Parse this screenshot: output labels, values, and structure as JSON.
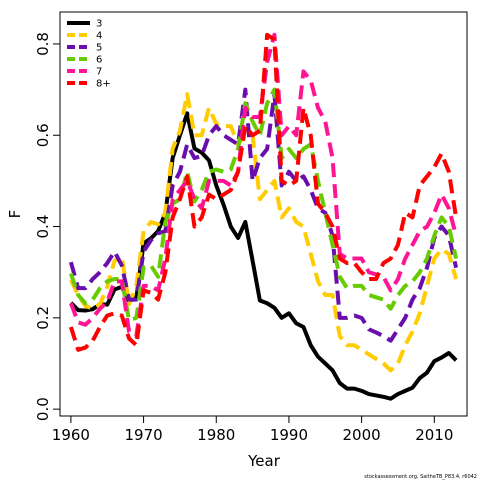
{
  "chart_data": {
    "type": "line",
    "title": "",
    "xlabel": "Year",
    "ylabel": "F",
    "xlim": [
      1958.5,
      2014.5
    ],
    "ylim": [
      -0.015,
      0.87
    ],
    "xticks": [
      1960,
      1970,
      1980,
      1990,
      2000,
      2010
    ],
    "xtick_labels": [
      "1960",
      "1970",
      "1980",
      "1990",
      "2000",
      "2010"
    ],
    "yticks": [
      0.0,
      0.2,
      0.4,
      0.6,
      0.8
    ],
    "ytick_labels": [
      "0.0",
      "0.2",
      "0.4",
      "0.6",
      "0.8"
    ],
    "grid": false,
    "legend_position": "top-left",
    "caption": "stockassessment.org, SaitheTB_P83.4, r6042",
    "x": [
      1960,
      1961,
      1962,
      1963,
      1964,
      1965,
      1966,
      1967,
      1968,
      1969,
      1970,
      1971,
      1972,
      1973,
      1974,
      1975,
      1976,
      1977,
      1978,
      1979,
      1980,
      1981,
      1982,
      1983,
      1984,
      1985,
      1986,
      1987,
      1988,
      1989,
      1990,
      1991,
      1992,
      1993,
      1994,
      1995,
      1996,
      1997,
      1998,
      1999,
      2000,
      2001,
      2002,
      2003,
      2004,
      2005,
      2006,
      2007,
      2008,
      2009,
      2010,
      2011,
      2012,
      2013
    ],
    "series": [
      {
        "name": "3",
        "color": "#000000",
        "dash": "solid",
        "values": [
          0.233,
          0.217,
          0.216,
          0.219,
          0.23,
          0.229,
          0.262,
          0.268,
          0.237,
          0.243,
          0.363,
          0.374,
          0.39,
          0.43,
          0.55,
          0.6,
          0.648,
          0.571,
          0.562,
          0.545,
          0.49,
          0.448,
          0.4,
          0.375,
          0.41,
          0.325,
          0.238,
          0.232,
          0.222,
          0.2,
          0.21,
          0.188,
          0.18,
          0.14,
          0.115,
          0.1,
          0.085,
          0.057,
          0.045,
          0.045,
          0.04,
          0.033,
          0.03,
          0.027,
          0.023,
          0.033,
          0.04,
          0.047,
          0.068,
          0.08,
          0.105,
          0.113,
          0.123,
          0.107
        ]
      },
      {
        "name": "4",
        "color": "#ffcc00",
        "dash": "dashed",
        "values": [
          0.283,
          0.25,
          0.226,
          0.22,
          0.23,
          0.268,
          0.325,
          0.335,
          0.23,
          0.27,
          0.39,
          0.41,
          0.405,
          0.43,
          0.57,
          0.61,
          0.69,
          0.6,
          0.6,
          0.66,
          0.625,
          0.62,
          0.62,
          0.58,
          0.6,
          0.6,
          0.46,
          0.48,
          0.5,
          0.42,
          0.44,
          0.41,
          0.4,
          0.34,
          0.28,
          0.25,
          0.25,
          0.16,
          0.14,
          0.14,
          0.13,
          0.12,
          0.11,
          0.1,
          0.085,
          0.1,
          0.14,
          0.17,
          0.21,
          0.27,
          0.33,
          0.35,
          0.34,
          0.285
        ]
      },
      {
        "name": "5",
        "color": "#6a0dad",
        "dash": "dashed",
        "values": [
          0.322,
          0.265,
          0.265,
          0.285,
          0.3,
          0.32,
          0.345,
          0.315,
          0.24,
          0.24,
          0.345,
          0.37,
          0.385,
          0.39,
          0.49,
          0.52,
          0.58,
          0.55,
          0.555,
          0.6,
          0.62,
          0.6,
          0.59,
          0.58,
          0.7,
          0.5,
          0.55,
          0.57,
          0.69,
          0.49,
          0.52,
          0.5,
          0.51,
          0.48,
          0.44,
          0.43,
          0.38,
          0.2,
          0.2,
          0.205,
          0.2,
          0.175,
          0.168,
          0.16,
          0.15,
          0.175,
          0.2,
          0.24,
          0.265,
          0.31,
          0.375,
          0.4,
          0.38,
          0.31
        ]
      },
      {
        "name": "6",
        "color": "#66cc00",
        "dash": "dashed",
        "values": [
          0.297,
          0.25,
          0.232,
          0.24,
          0.265,
          0.28,
          0.285,
          0.285,
          0.195,
          0.2,
          0.31,
          0.315,
          0.29,
          0.41,
          0.45,
          0.46,
          0.52,
          0.455,
          0.48,
          0.52,
          0.525,
          0.52,
          0.525,
          0.57,
          0.67,
          0.63,
          0.6,
          0.67,
          0.7,
          0.55,
          0.57,
          0.55,
          0.57,
          0.58,
          0.5,
          0.43,
          0.36,
          0.29,
          0.265,
          0.27,
          0.27,
          0.25,
          0.245,
          0.24,
          0.22,
          0.25,
          0.27,
          0.28,
          0.3,
          0.33,
          0.38,
          0.42,
          0.4,
          0.33
        ]
      },
      {
        "name": "7",
        "color": "#ff1493",
        "dash": "dashed",
        "values": [
          0.232,
          0.19,
          0.185,
          0.2,
          0.22,
          0.235,
          0.28,
          0.28,
          0.17,
          0.16,
          0.27,
          0.27,
          0.26,
          0.33,
          0.46,
          0.48,
          0.5,
          0.46,
          0.44,
          0.5,
          0.5,
          0.5,
          0.49,
          0.52,
          0.66,
          0.64,
          0.64,
          0.76,
          0.82,
          0.6,
          0.62,
          0.6,
          0.74,
          0.72,
          0.66,
          0.63,
          0.55,
          0.34,
          0.33,
          0.33,
          0.33,
          0.3,
          0.295,
          0.29,
          0.26,
          0.285,
          0.33,
          0.36,
          0.39,
          0.4,
          0.43,
          0.47,
          0.44,
          0.38
        ]
      },
      {
        "name": "8+",
        "color": "#ff0000",
        "dash": "dashed",
        "values": [
          0.18,
          0.13,
          0.135,
          0.15,
          0.18,
          0.205,
          0.21,
          0.205,
          0.155,
          0.14,
          0.26,
          0.255,
          0.24,
          0.3,
          0.42,
          0.46,
          0.51,
          0.4,
          0.42,
          0.47,
          0.46,
          0.47,
          0.48,
          0.52,
          0.62,
          0.6,
          0.61,
          0.82,
          0.81,
          0.5,
          0.49,
          0.5,
          0.66,
          0.6,
          0.45,
          0.43,
          0.4,
          0.33,
          0.32,
          0.32,
          0.3,
          0.285,
          0.285,
          0.32,
          0.33,
          0.36,
          0.43,
          0.42,
          0.49,
          0.51,
          0.53,
          0.56,
          0.52,
          0.42
        ]
      }
    ]
  }
}
